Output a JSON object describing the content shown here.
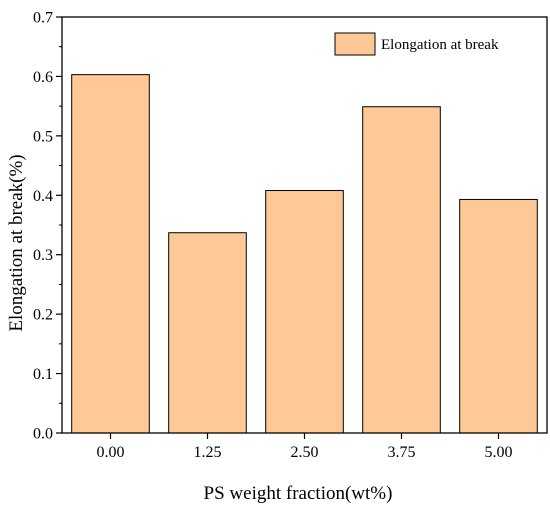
{
  "chart_data": {
    "type": "bar",
    "title": "",
    "xlabel": "PS weight fraction(wt%)",
    "ylabel": "Elongation at break(%)",
    "categories": [
      "0.00",
      "1.25",
      "2.50",
      "3.75",
      "5.00"
    ],
    "series": [
      {
        "name": "Elongation at break",
        "values": [
          0.603,
          0.337,
          0.408,
          0.549,
          0.393
        ]
      }
    ],
    "ylim": [
      0,
      0.7
    ],
    "yticks": [
      "0.0",
      "0.1",
      "0.2",
      "0.3",
      "0.4",
      "0.5",
      "0.6",
      "0.7"
    ],
    "grid": false,
    "legend_position": "top-right",
    "colors": {
      "bar_fill": "#FFC896",
      "bar_stroke": "#000000",
      "axis": "#000000"
    }
  }
}
